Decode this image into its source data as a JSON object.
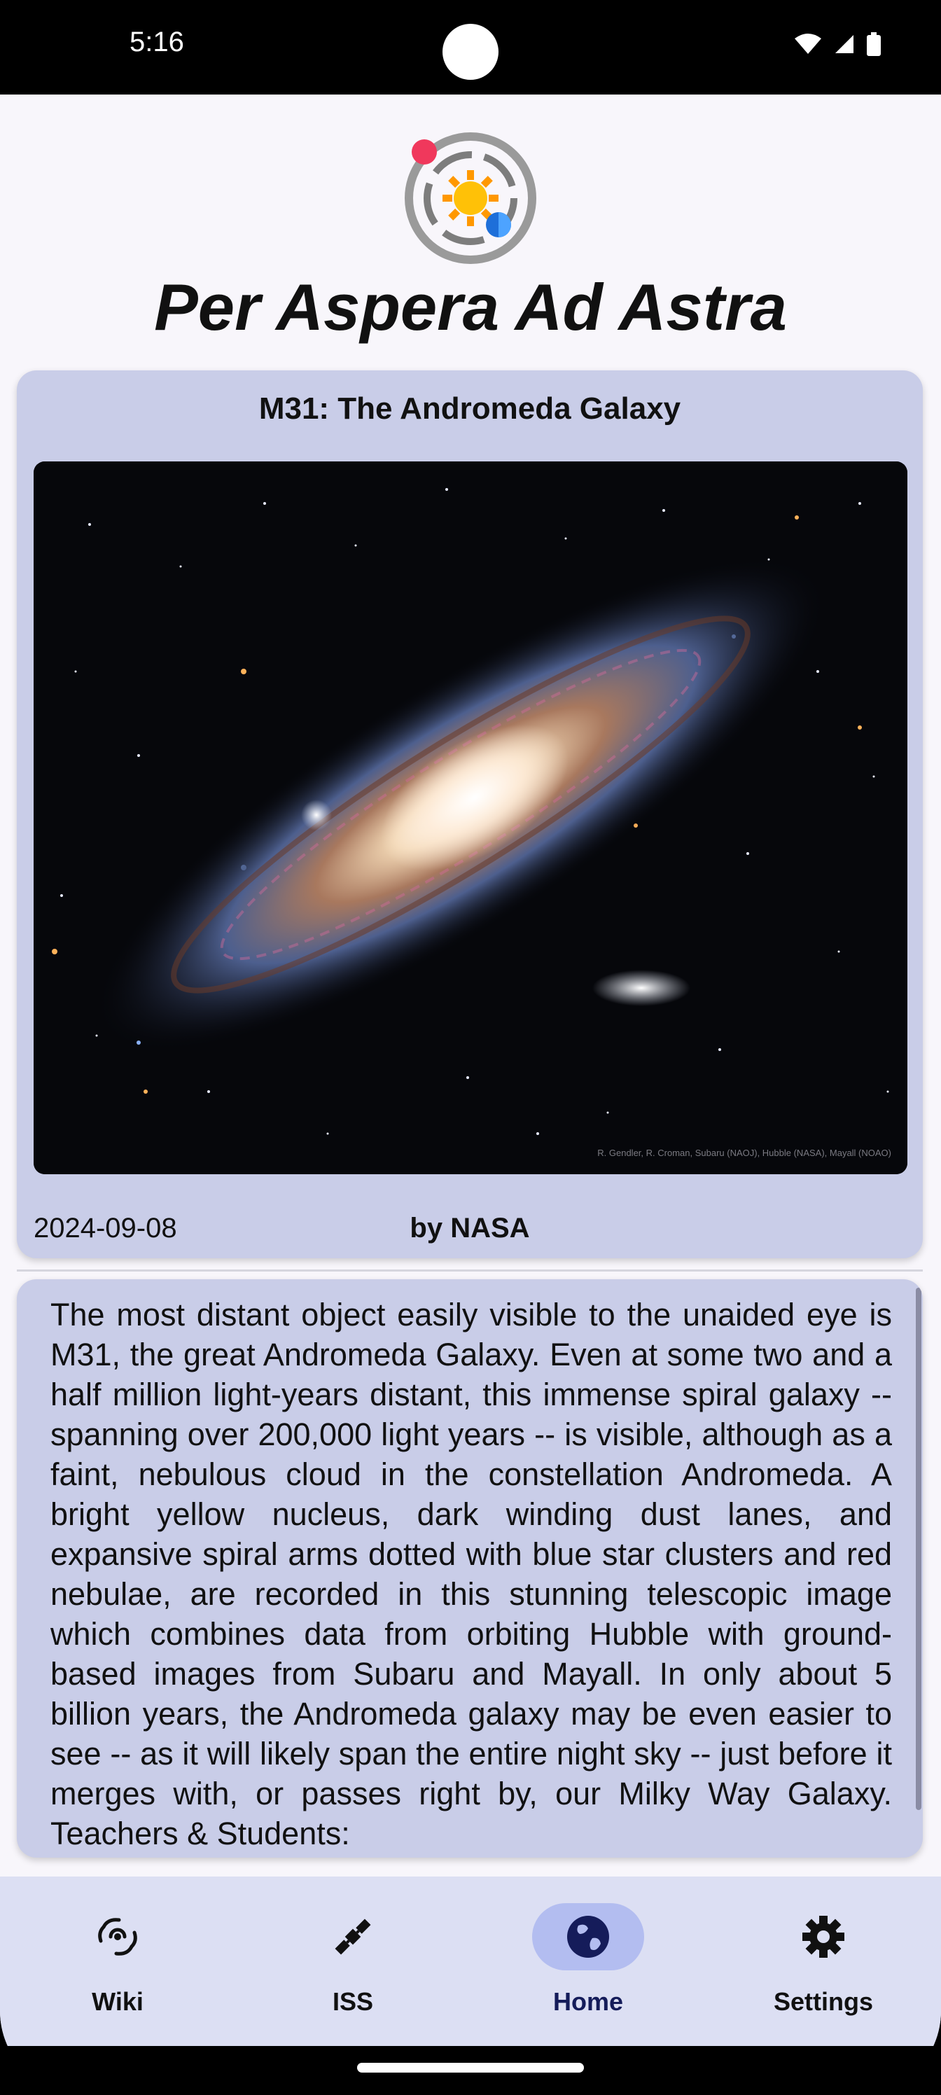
{
  "status_bar": {
    "time": "5:16"
  },
  "app": {
    "title": "Per Aspera Ad Astra"
  },
  "apod": {
    "title": "M31: The Andromeda Galaxy",
    "image_credit_overlay": "R. Gendler, R. Croman, Subaru (NAOJ), Hubble (NASA), Mayall (NOAO)",
    "date": "2024-09-08",
    "credit": "by NASA",
    "explanation": "The most distant object easily visible to the unaided eye is M31, the great Andromeda Galaxy. Even at some two and a half million light-years distant, this immense spiral galaxy -- spanning over 200,000 light years -- is visible, although as a faint, nebulous cloud in the constellation Andromeda. A bright yellow nucleus, dark winding dust lanes, and expansive spiral arms dotted with blue star clusters and red nebulae, are recorded in this stunning telescopic image which combines data from orbiting Hubble with ground-based images from Subaru and Mayall. In only about 5 billion years, the Andromeda galaxy may be even easier to see -- as it will likely span the entire night sky -- just before it merges with, or passes right by, our Milky Way Galaxy.   Teachers & Students:"
  },
  "bottom_nav": {
    "items": [
      {
        "label": "Wiki",
        "icon": "galaxy-icon"
      },
      {
        "label": "ISS",
        "icon": "satellite-icon"
      },
      {
        "label": "Home",
        "icon": "globe-icon",
        "selected": true
      },
      {
        "label": "Settings",
        "icon": "gear-icon"
      }
    ]
  },
  "colors": {
    "accent": "#b3bdf0",
    "card": "#c9cde8",
    "nav": "#dcdff3"
  }
}
